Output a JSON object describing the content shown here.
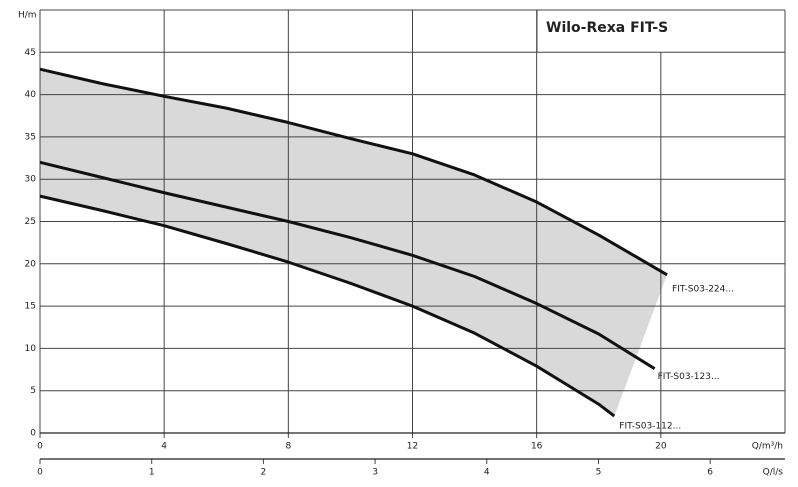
{
  "chart_data": {
    "type": "line",
    "title": "Wilo-Rexa FIT-S",
    "y_label": "H/m",
    "x_label": "Q/m³/h",
    "x2_label": "Q/l/s",
    "xlim": [
      0,
      24
    ],
    "xticks": [
      0,
      4,
      8,
      12,
      16,
      20
    ],
    "x2lim": [
      0,
      6.67
    ],
    "x2ticks": [
      0,
      1,
      2,
      3,
      4,
      5,
      6
    ],
    "ylim": [
      0,
      50
    ],
    "yticks": [
      0,
      5,
      10,
      15,
      20,
      25,
      30,
      35,
      40,
      45
    ],
    "grid": true,
    "fill_color": "#d9d9d9",
    "series": [
      {
        "name": "FIT-S03-224...",
        "color": "#111111",
        "x": [
          0,
          2,
          4,
          6,
          8,
          10,
          12,
          14,
          16,
          18,
          20.2
        ],
        "values": [
          43,
          41.3,
          39.8,
          38.4,
          36.7,
          34.8,
          33,
          30.5,
          27.3,
          23.4,
          18.7
        ]
      },
      {
        "name": "FIT-S03-123...",
        "color": "#111111",
        "x": [
          0,
          2,
          4,
          6,
          8,
          10,
          12,
          14,
          16,
          18,
          19.8
        ],
        "values": [
          32,
          30.2,
          28.4,
          26.7,
          25,
          23.1,
          21,
          18.5,
          15.3,
          11.7,
          7.6
        ]
      },
      {
        "name": "FIT-S03-112...",
        "color": "#111111",
        "x": [
          0,
          2,
          4,
          6,
          8,
          10,
          12,
          14,
          16,
          18,
          18.5
        ],
        "values": [
          28,
          26.3,
          24.5,
          22.4,
          20.2,
          17.7,
          15,
          11.8,
          7.9,
          3.4,
          2
        ]
      }
    ]
  }
}
